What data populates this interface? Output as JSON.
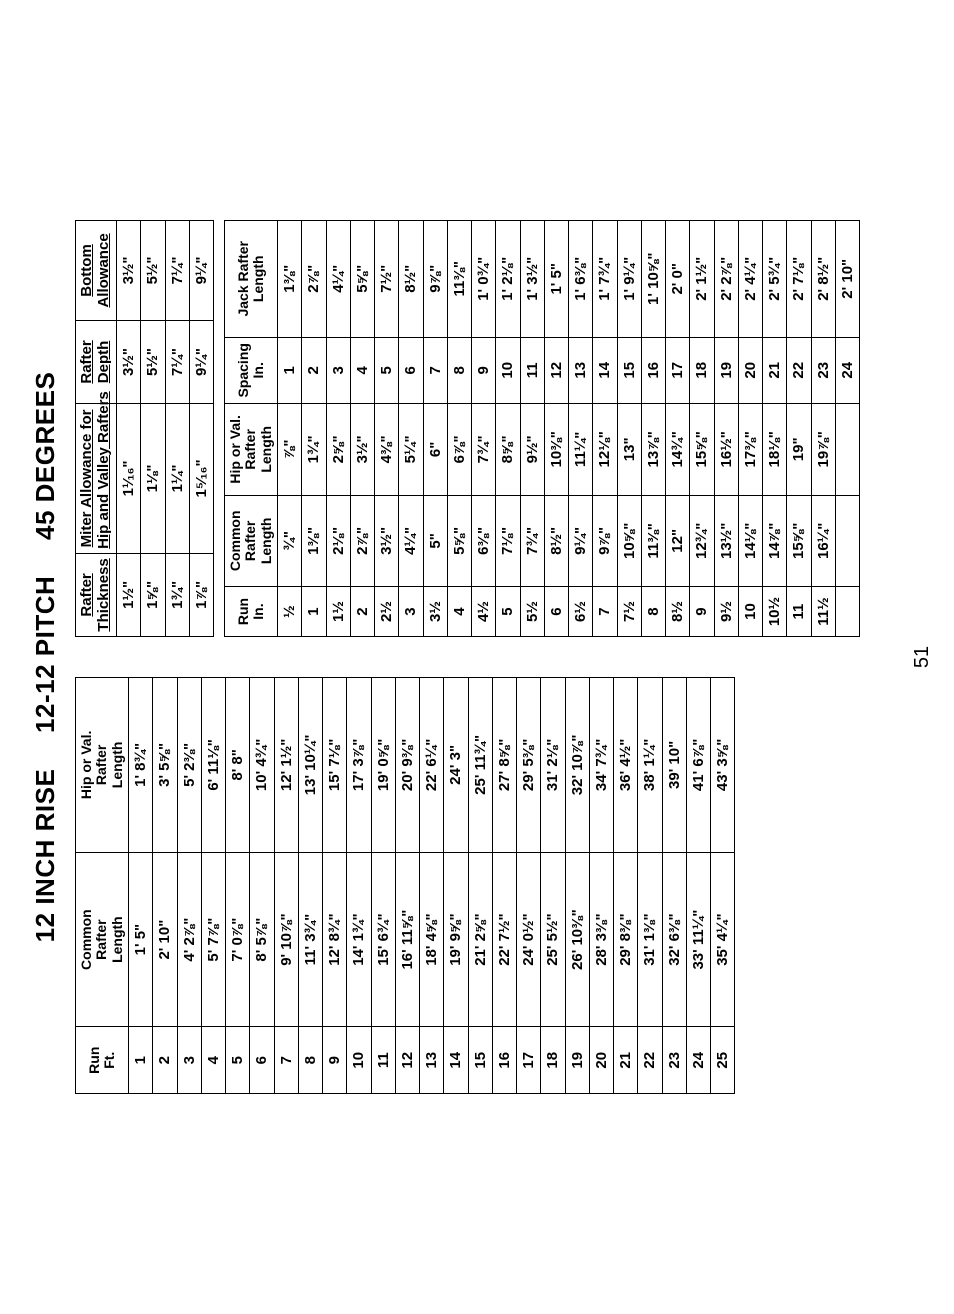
{
  "title_main": "12 INCH RISE",
  "title_pitch": "12-12 PITCH",
  "title_deg": "45 DEGREES",
  "page_number": "51",
  "left": {
    "headers": {
      "run": "Run\nFt.",
      "common": "Common\nRafter\nLength",
      "hip": "Hip or Val.\nRafter\nLength"
    },
    "rows": [
      [
        "1",
        "1' 5\"",
        "1' 8¾\""
      ],
      [
        "2",
        "2' 10\"",
        "3' 5⅝\""
      ],
      [
        "3",
        "4' 2⅞\"",
        "5' 2⅜\""
      ],
      [
        "4",
        "5' 7⅞\"",
        "6' 11⅛\""
      ],
      [
        "5",
        "7' 0⅞\"",
        "8' 8\""
      ],
      [
        "6",
        "8' 5⅞\"",
        "10' 4¾\""
      ],
      [
        "7",
        "9' 10⅞\"",
        "12' 1½\""
      ],
      [
        "8",
        "11' 3¾\"",
        "13' 10¼\""
      ],
      [
        "9",
        "12' 8¾\"",
        "15' 7⅛\""
      ],
      [
        "10",
        "14' 1¾\"",
        "17' 3⅞\""
      ],
      [
        "11",
        "15' 6¾\"",
        "19' 0⅝\""
      ],
      [
        "12",
        "16' 11⅝\"",
        "20' 9⅜\""
      ],
      [
        "13",
        "18' 4⅝\"",
        "22' 6¼\""
      ],
      [
        "14",
        "19' 9⅝\"",
        "24' 3\""
      ],
      [
        "15",
        "21' 2⅝\"",
        "25' 11¾\""
      ],
      [
        "16",
        "22' 7½\"",
        "27' 8⅝\""
      ],
      [
        "17",
        "24' 0½\"",
        "29' 5⅜\""
      ],
      [
        "18",
        "25' 5½\"",
        "31' 2⅛\""
      ],
      [
        "19",
        "26' 10⅜\"",
        "32' 10⅞\""
      ],
      [
        "20",
        "28' 3⅜\"",
        "34' 7¾\""
      ],
      [
        "21",
        "29' 8⅜\"",
        "36' 4½\""
      ],
      [
        "22",
        "31' 1⅜\"",
        "38' 1¼\""
      ],
      [
        "23",
        "32' 6⅜\"",
        "39' 10\""
      ],
      [
        "24",
        "33' 11¼\"",
        "41' 6⅞\""
      ],
      [
        "25",
        "35' 4¼\"",
        "43' 3⅝\""
      ]
    ]
  },
  "right": {
    "headers": {
      "run": "Run\nIn.",
      "common": "Common\nRafter\nLength",
      "hip": "Hip or Val.\nRafter\nLength",
      "spacing": "Spacing\nIn.",
      "jack": "Jack Rafter\nLength"
    },
    "rows": [
      [
        "½",
        "¾\"",
        "⅞\"",
        "1",
        "1⅜\""
      ],
      [
        "1",
        "1⅜\"",
        "1¾\"",
        "2",
        "2⅞\""
      ],
      [
        "1½",
        "2⅛\"",
        "2⅝\"",
        "3",
        "4¼\""
      ],
      [
        "2",
        "2⅞\"",
        "3½\"",
        "4",
        "5⅝\""
      ],
      [
        "2½",
        "3½\"",
        "4⅜\"",
        "5",
        "7½\""
      ],
      [
        "3",
        "4¼\"",
        "5¼\"",
        "6",
        "8½\""
      ],
      [
        "3½",
        "5\"",
        "6\"",
        "7",
        "9⅞\""
      ],
      [
        "4",
        "5⅝\"",
        "6⅞\"",
        "8",
        "11⅜\""
      ],
      [
        "4½",
        "6⅜\"",
        "7¾\"",
        "9",
        "1' 0¾\""
      ],
      [
        "5",
        "7⅛\"",
        "8⅝\"",
        "10",
        "1' 2⅛\""
      ],
      [
        "5½",
        "7¾\"",
        "9½\"",
        "11",
        "1' 3½\""
      ],
      [
        "6",
        "8½\"",
        "10⅜\"",
        "12",
        "1' 5\""
      ],
      [
        "6½",
        "9¼\"",
        "11¼\"",
        "13",
        "1' 6⅜\""
      ],
      [
        "7",
        "9⅞\"",
        "12⅛\"",
        "14",
        "1' 7¾\""
      ],
      [
        "7½",
        "10⅝\"",
        "13\"",
        "15",
        "1' 9¼\""
      ],
      [
        "8",
        "11⅜\"",
        "13⅞\"",
        "16",
        "1' 10⅝\""
      ],
      [
        "8½",
        "12\"",
        "14¾\"",
        "17",
        "2' 0\""
      ],
      [
        "9",
        "12¾\"",
        "15⅝\"",
        "18",
        "2' 1½\""
      ],
      [
        "9½",
        "13½\"",
        "16½\"",
        "19",
        "2' 2⅞\""
      ],
      [
        "10",
        "14⅛\"",
        "17⅜\"",
        "20",
        "2' 4¼\""
      ],
      [
        "10½",
        "14⅞\"",
        "18⅛\"",
        "21",
        "2' 5¾\""
      ],
      [
        "11",
        "15⅝\"",
        "19\"",
        "22",
        "2' 7⅛\""
      ],
      [
        "11½",
        "16¼\"",
        "19⅞\"",
        "23",
        "2' 8½\""
      ],
      [
        "",
        "",
        "",
        "24",
        "2' 10\""
      ]
    ]
  },
  "allowance": {
    "headers": [
      "Rafter\nThickness",
      "Miter Allowance for\nHip and Valley Rafters",
      "Rafter\nDepth",
      "Bottom\nAllowance"
    ],
    "rows": [
      [
        "1½\"",
        "1¹⁄₁₆\"",
        "3½\"",
        "3½\""
      ],
      [
        "1⅝\"",
        "1⅛\"",
        "5½\"",
        "5½\""
      ],
      [
        "1¾\"",
        "1¼\"",
        "7¼\"",
        "7¼\""
      ],
      [
        "1⅞\"",
        "1⁵⁄₁₆\"",
        "9¼\"",
        "9¼\""
      ]
    ]
  }
}
